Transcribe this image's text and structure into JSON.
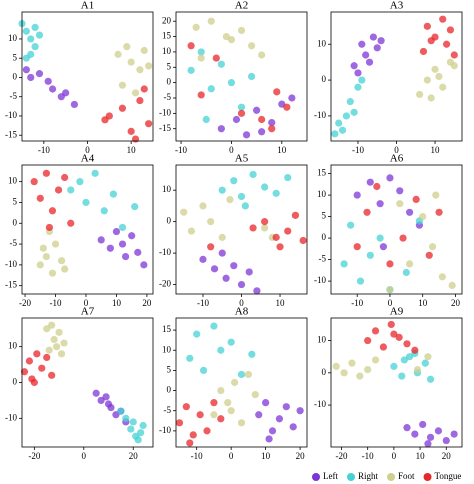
{
  "chart_data": [
    {
      "type": "scatter",
      "title": "A1",
      "xlim": [
        -15,
        15
      ],
      "ylim": [
        -16.5,
        17
      ],
      "xticks": [
        -10,
        0,
        10
      ],
      "yticks": [
        10,
        5,
        0,
        -5,
        -10,
        -15
      ],
      "series": [
        {
          "name": "Left",
          "color": "#7d35d6",
          "x": [
            -14,
            -13,
            -11,
            -9,
            -8,
            -6,
            -5,
            -3
          ],
          "values": [
            2,
            0,
            1,
            -1,
            -3,
            -5,
            -4,
            -7
          ]
        },
        {
          "name": "Right",
          "color": "#45d2d6",
          "x": [
            -15,
            -14,
            -13,
            -12,
            -11,
            -13,
            -14,
            -12
          ],
          "values": [
            14,
            12,
            10,
            8,
            11,
            6,
            5,
            13
          ]
        },
        {
          "name": "Foot",
          "color": "#cfcf8e",
          "x": [
            7,
            9,
            10,
            12,
            13,
            8,
            11,
            14
          ],
          "values": [
            6,
            8,
            4,
            2,
            7,
            -2,
            -4,
            3
          ]
        },
        {
          "name": "Tongue",
          "color": "#e8262a",
          "x": [
            5,
            8,
            10,
            12,
            14,
            11,
            13,
            4
          ],
          "values": [
            -10,
            -8,
            -14,
            -6,
            -12,
            -16,
            -3,
            -11
          ]
        }
      ]
    },
    {
      "type": "scatter",
      "title": "A2",
      "xlim": [
        -11,
        15
      ],
      "ylim": [
        -19,
        23
      ],
      "xticks": [
        -10,
        0,
        10
      ],
      "yticks": [
        20,
        15,
        10,
        5,
        0,
        -5,
        -10,
        -15
      ],
      "series": [
        {
          "name": "Left",
          "color": "#7d35d6",
          "x": [
            -2,
            1,
            3,
            5,
            8,
            10,
            12,
            6
          ],
          "values": [
            -15,
            -12,
            -17,
            -9,
            -13,
            -7,
            -5,
            -16
          ]
        },
        {
          "name": "Right",
          "color": "#45d2d6",
          "x": [
            -8,
            -6,
            -4,
            -2,
            0,
            2,
            4,
            -5
          ],
          "values": [
            4,
            10,
            -2,
            6,
            0,
            -8,
            2,
            -12
          ]
        },
        {
          "name": "Foot",
          "color": "#cfcf8e",
          "x": [
            -7,
            -4,
            -1,
            2,
            4,
            6,
            -6,
            0
          ],
          "values": [
            18,
            20,
            15,
            17,
            12,
            9,
            8,
            14
          ]
        },
        {
          "name": "Tongue",
          "color": "#e8262a",
          "x": [
            -6,
            -3,
            2,
            6,
            9,
            11,
            -8,
            8
          ],
          "values": [
            -4,
            8,
            -10,
            -12,
            -3,
            -8,
            12,
            -15
          ]
        }
      ]
    },
    {
      "type": "scatter",
      "title": "A3",
      "xlim": [
        -17,
        17
      ],
      "ylim": [
        -17,
        19
      ],
      "xticks": [
        -10,
        0,
        10
      ],
      "yticks": [
        10,
        0,
        -10
      ],
      "series": [
        {
          "name": "Left",
          "color": "#7d35d6",
          "x": [
            -11,
            -9,
            -8,
            -6,
            -5,
            -10,
            -7,
            -4
          ],
          "values": [
            4,
            10,
            7,
            12,
            9,
            2,
            5,
            11
          ]
        },
        {
          "name": "Right",
          "color": "#45d2d6",
          "x": [
            -16,
            -15,
            -13,
            -12,
            -10,
            -11,
            -14,
            -9
          ],
          "values": [
            -15,
            -12,
            -10,
            -6,
            -2,
            -9,
            -14,
            0
          ]
        },
        {
          "name": "Foot",
          "color": "#cfcf8e",
          "x": [
            6,
            8,
            10,
            12,
            14,
            9,
            11,
            15
          ],
          "values": [
            -4,
            0,
            3,
            -2,
            5,
            -5,
            1,
            4
          ]
        },
        {
          "name": "Tongue",
          "color": "#e8262a",
          "x": [
            7,
            8,
            10,
            12,
            13,
            14,
            9,
            15
          ],
          "values": [
            8,
            15,
            12,
            17,
            10,
            14,
            11,
            7
          ]
        }
      ]
    },
    {
      "type": "scatter",
      "title": "A4",
      "xlim": [
        -21,
        22
      ],
      "ylim": [
        -17,
        14
      ],
      "xticks": [
        -20,
        -10,
        0,
        10,
        20
      ],
      "yticks": [
        10,
        5,
        0,
        -5,
        -10,
        -15
      ],
      "series": [
        {
          "name": "Left",
          "color": "#7d35d6",
          "x": [
            5,
            8,
            10,
            13,
            15,
            17,
            19,
            12
          ],
          "values": [
            -4,
            -6,
            -2,
            -8,
            -3,
            -7,
            -10,
            -5
          ]
        },
        {
          "name": "Right",
          "color": "#45d2d6",
          "x": [
            -5,
            -2,
            0,
            3,
            6,
            9,
            12,
            16
          ],
          "values": [
            8,
            10,
            5,
            12,
            3,
            7,
            -1,
            4
          ]
        },
        {
          "name": "Foot",
          "color": "#cfcf8e",
          "x": [
            -15,
            -13,
            -11,
            -10,
            -8,
            -12,
            -14,
            -7
          ],
          "values": [
            -10,
            -8,
            -12,
            -5,
            -9,
            -2,
            -6,
            -11
          ]
        },
        {
          "name": "Tongue",
          "color": "#e8262a",
          "x": [
            -17,
            -15,
            -13,
            -11,
            -9,
            -7,
            -5,
            -12
          ],
          "values": [
            10,
            6,
            12,
            3,
            8,
            11,
            0,
            -1
          ]
        }
      ]
    },
    {
      "type": "scatter",
      "title": "A5",
      "xlim": [
        -17,
        17
      ],
      "ylim": [
        -23,
        18
      ],
      "xticks": [
        -10,
        0,
        10
      ],
      "yticks": [
        10,
        0,
        -10,
        -20
      ],
      "series": [
        {
          "name": "Left",
          "color": "#7d35d6",
          "x": [
            -10,
            -7,
            -4,
            -2,
            0,
            2,
            4,
            -5
          ],
          "values": [
            -12,
            -15,
            -18,
            -14,
            -20,
            -16,
            -22,
            -10
          ]
        },
        {
          "name": "Right",
          "color": "#45d2d6",
          "x": [
            -5,
            -2,
            0,
            3,
            6,
            9,
            12,
            1
          ],
          "values": [
            10,
            13,
            8,
            15,
            11,
            9,
            14,
            5
          ]
        },
        {
          "name": "Foot",
          "color": "#cfcf8e",
          "x": [
            -15,
            -13,
            -10,
            -8,
            -5,
            -3,
            6,
            8
          ],
          "values": [
            3,
            -3,
            5,
            0,
            -5,
            7,
            -2,
            -5
          ]
        },
        {
          "name": "Tongue",
          "color": "#e8262a",
          "x": [
            3,
            6,
            9,
            12,
            14,
            16,
            -8,
            10
          ],
          "values": [
            -2,
            0,
            -5,
            -3,
            2,
            -6,
            -8,
            -8
          ]
        }
      ]
    },
    {
      "type": "scatter",
      "title": "A6",
      "xlim": [
        -18,
        22
      ],
      "ylim": [
        -13,
        17
      ],
      "xticks": [
        -10,
        0,
        10,
        20
      ],
      "yticks": [
        15,
        10,
        5,
        0,
        -5,
        -10
      ],
      "series": [
        {
          "name": "Left",
          "color": "#7d35d6",
          "x": [
            -10,
            -6,
            -3,
            0,
            3,
            6,
            9,
            -2
          ],
          "values": [
            10,
            13,
            8,
            14,
            11,
            6,
            3,
            -2
          ]
        },
        {
          "name": "Right",
          "color": "#45d2d6",
          "x": [
            -14,
            -12,
            -9,
            -6,
            -3,
            0,
            5,
            9
          ],
          "values": [
            -6,
            3,
            -10,
            -4,
            0,
            -12,
            -8,
            4
          ]
        },
        {
          "name": "Foot",
          "color": "#cfcf8e",
          "x": [
            0,
            3,
            6,
            10,
            13,
            16,
            19,
            14
          ],
          "values": [
            -12,
            8,
            -6,
            5,
            -2,
            -9,
            -11,
            10
          ]
        },
        {
          "name": "Tongue",
          "color": "#e8262a",
          "x": [
            -10,
            -7,
            -4,
            0,
            4,
            8,
            12,
            15
          ],
          "values": [
            -2,
            6,
            12,
            -6,
            0,
            9,
            -4,
            6
          ]
        }
      ]
    },
    {
      "type": "scatter",
      "title": "A7",
      "xlim": [
        -25,
        28
      ],
      "ylim": [
        -18,
        18
      ],
      "xticks": [
        -20,
        0,
        20
      ],
      "yticks": [
        10,
        0,
        -10
      ],
      "series": [
        {
          "name": "Left",
          "color": "#7d35d6",
          "x": [
            5,
            7,
            9,
            11,
            13,
            15,
            17,
            10
          ],
          "values": [
            -3,
            -5,
            -4,
            -7,
            -9,
            -8,
            -11,
            -6
          ]
        },
        {
          "name": "Right",
          "color": "#45d2d6",
          "x": [
            15,
            17,
            19,
            20,
            21,
            23,
            24,
            22
          ],
          "values": [
            -8,
            -10,
            -13,
            -11,
            -15,
            -14,
            -12,
            -16
          ]
        },
        {
          "name": "Foot",
          "color": "#cfcf8e",
          "x": [
            -15,
            -13,
            -12,
            -11,
            -10,
            -9,
            -8,
            -14
          ],
          "values": [
            15,
            16,
            12,
            10,
            14,
            8,
            11,
            9
          ]
        },
        {
          "name": "Tongue",
          "color": "#e8262a",
          "x": [
            -24,
            -22,
            -21,
            -19,
            -17,
            -15,
            -13,
            -20
          ],
          "values": [
            3,
            6,
            1,
            8,
            4,
            7,
            2,
            0
          ]
        }
      ]
    },
    {
      "type": "scatter",
      "title": "A8",
      "xlim": [
        -16,
        22
      ],
      "ylim": [
        -14,
        18
      ],
      "xticks": [
        -10,
        0,
        10,
        20
      ],
      "yticks": [
        15,
        10,
        5,
        0,
        -5,
        -10
      ],
      "series": [
        {
          "name": "Left",
          "color": "#7d35d6",
          "x": [
            8,
            10,
            12,
            14,
            16,
            18,
            20,
            11
          ],
          "values": [
            -6,
            -3,
            -10,
            -7,
            -4,
            -9,
            -5,
            -12
          ]
        },
        {
          "name": "Right",
          "color": "#45d2d6",
          "x": [
            -12,
            -10,
            -8,
            -5,
            -3,
            0,
            3,
            6
          ],
          "values": [
            8,
            14,
            5,
            16,
            10,
            12,
            4,
            9
          ]
        },
        {
          "name": "Foot",
          "color": "#cfcf8e",
          "x": [
            -5,
            -3,
            -1,
            1,
            3,
            5,
            7,
            0
          ],
          "values": [
            -6,
            0,
            -3,
            2,
            -8,
            4,
            -1,
            -5
          ]
        },
        {
          "name": "Tongue",
          "color": "#e8262a",
          "x": [
            -15,
            -13,
            -11,
            -9,
            -7,
            -5,
            -3,
            -12
          ],
          "values": [
            -8,
            -4,
            -11,
            -6,
            -10,
            -3,
            -7,
            -13
          ]
        }
      ]
    },
    {
      "type": "scatter",
      "title": "A9",
      "xlim": [
        -24,
        26
      ],
      "ylim": [
        -23,
        17
      ],
      "xticks": [
        -20,
        -10,
        0,
        10,
        20
      ],
      "yticks": [
        10,
        0,
        -10
      ],
      "series": [
        {
          "name": "Left",
          "color": "#7d35d6",
          "x": [
            5,
            8,
            11,
            14,
            17,
            20,
            23,
            13
          ],
          "values": [
            -17,
            -19,
            -16,
            -20,
            -18,
            -21,
            -19,
            -22
          ]
        },
        {
          "name": "Right",
          "color": "#45d2d6",
          "x": [
            0,
            3,
            6,
            9,
            12,
            14,
            4,
            8
          ],
          "values": [
            2,
            -1,
            5,
            0,
            3,
            -2,
            4,
            6
          ]
        },
        {
          "name": "Foot",
          "color": "#cfcf8e",
          "x": [
            -22,
            -19,
            -16,
            -13,
            -10,
            -7,
            9,
            13
          ],
          "values": [
            2,
            0,
            3,
            -1,
            1,
            4,
            1,
            5
          ]
        },
        {
          "name": "Tongue",
          "color": "#e8262a",
          "x": [
            -10,
            -7,
            -4,
            -1,
            2,
            5,
            8,
            0
          ],
          "values": [
            10,
            13,
            8,
            15,
            11,
            9,
            7,
            12
          ]
        }
      ]
    }
  ]
}
